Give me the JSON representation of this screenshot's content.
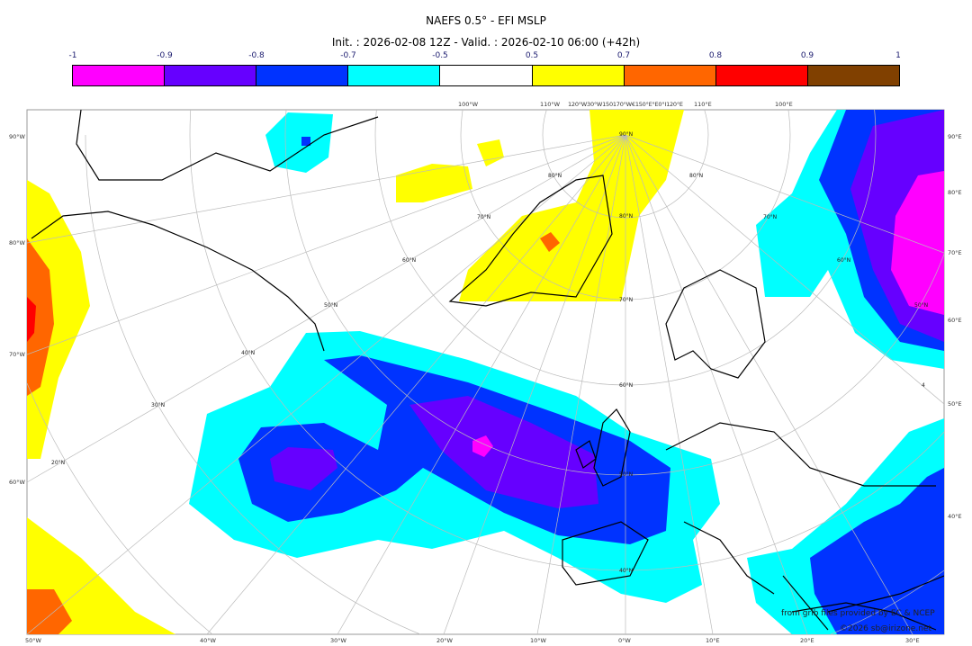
{
  "header": {
    "title": "NAEFS 0.5° - EFI MSLP",
    "subtitle": "Init. : 2026-02-08 12Z - Valid. : 2026-02-10 06:00 (+42h)"
  },
  "colorbar": {
    "ticks": [
      "-1",
      "-0.9",
      "-0.8",
      "-0.7",
      "-0.5",
      "0.5",
      "0.7",
      "0.8",
      "0.9",
      "1"
    ],
    "colors": [
      "#ff00ff",
      "#6600ff",
      "#0033ff",
      "#00ffff",
      "#ffffff",
      "#ffff00",
      "#ff6600",
      "#ff0000",
      "#804000"
    ]
  },
  "map": {
    "left_labels": [
      "90°W",
      "80°W",
      "70°W",
      "60°W"
    ],
    "right_labels": [
      "90°E",
      "80°E",
      "70°E",
      "60°E",
      "50°E",
      "40°E"
    ],
    "bottom_labels": [
      "50°W",
      "40°W",
      "30°W",
      "20°W",
      "10°W",
      "0°W",
      "10°E",
      "20°E",
      "30°E"
    ],
    "top_labels": [
      "100°W",
      "110°W",
      "120°W30°W150170°W€150°E°E0°I120°E",
      "110°E",
      "100°E"
    ],
    "lat_labels": [
      "90°N",
      "80°N",
      "70°N",
      "60°N",
      "50°N",
      "40°N",
      "50°N",
      "60°N",
      "70°N",
      "80°N",
      "40°N",
      "30°N",
      "20°N",
      "80°N",
      "70°N",
      "60°N",
      "50°N",
      "4"
    ]
  },
  "credits": {
    "source": "from grib files provided by EC & NCEP",
    "copyright": "©2026 sb@irizone.net"
  }
}
